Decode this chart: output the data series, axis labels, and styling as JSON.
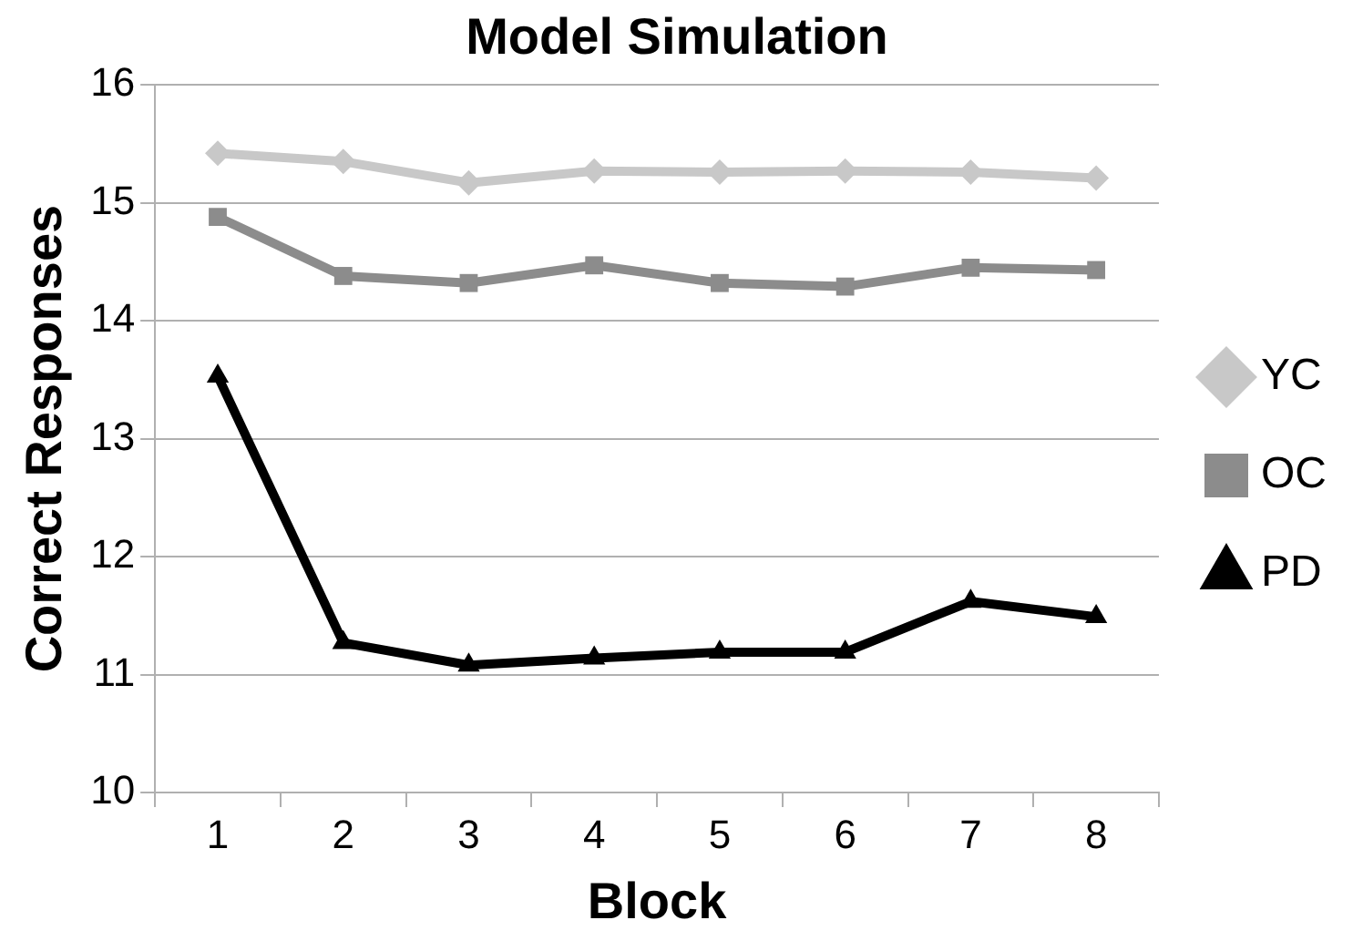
{
  "chart_data": {
    "type": "line",
    "title": "Model Simulation",
    "xlabel": "Block",
    "ylabel": "Correct Responses",
    "categories": [
      "1",
      "2",
      "3",
      "4",
      "5",
      "6",
      "7",
      "8"
    ],
    "series": [
      {
        "name": "YC",
        "color": "#c8c8c8",
        "marker": "diamond",
        "values": [
          15.42,
          15.35,
          15.17,
          15.27,
          15.26,
          15.27,
          15.26,
          15.21
        ]
      },
      {
        "name": "OC",
        "color": "#8c8c8c",
        "marker": "square",
        "values": [
          14.88,
          14.38,
          14.32,
          14.47,
          14.32,
          14.29,
          14.45,
          14.43
        ]
      },
      {
        "name": "PD",
        "color": "#000000",
        "marker": "triangle",
        "values": [
          13.53,
          11.27,
          11.08,
          11.14,
          11.19,
          11.19,
          11.62,
          11.49
        ]
      }
    ],
    "ylim": [
      10,
      16
    ],
    "yticks": [
      10,
      11,
      12,
      13,
      14,
      15,
      16
    ],
    "grid": "y",
    "legend": "right",
    "line_style": "solid"
  }
}
